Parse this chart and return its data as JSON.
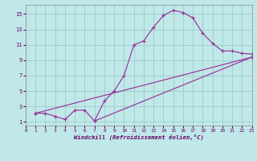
{
  "xlabel": "Windchill (Refroidissement éolien,°C)",
  "bg_color": "#c0e8e8",
  "line_color": "#993399",
  "grid_color": "#99cccc",
  "xlim": [
    0,
    23
  ],
  "ylim": [
    0.5,
    16.2
  ],
  "yticks": [
    1,
    3,
    5,
    7,
    9,
    11,
    13,
    15
  ],
  "xticks": [
    0,
    1,
    2,
    3,
    4,
    5,
    6,
    7,
    8,
    9,
    10,
    11,
    12,
    13,
    14,
    15,
    16,
    17,
    18,
    19,
    20,
    21,
    22,
    23
  ],
  "line1_x": [
    1,
    2,
    3,
    4,
    5,
    6,
    7,
    8,
    9,
    10,
    11,
    12,
    13,
    14,
    15,
    16,
    17,
    18,
    19,
    20,
    21,
    22,
    23
  ],
  "line1_y": [
    2.1,
    2.1,
    1.7,
    1.3,
    2.5,
    2.5,
    1.1,
    3.7,
    5.0,
    7.0,
    11.0,
    11.5,
    13.3,
    14.8,
    15.5,
    15.2,
    14.5,
    12.5,
    11.2,
    10.2,
    10.2,
    9.9,
    9.8
  ],
  "line2_x": [
    1,
    23
  ],
  "line2_y": [
    2.1,
    9.4
  ],
  "line3_x": [
    7,
    23
  ],
  "line3_y": [
    1.1,
    9.4
  ],
  "marker_size": 3.5,
  "linewidth": 0.85
}
